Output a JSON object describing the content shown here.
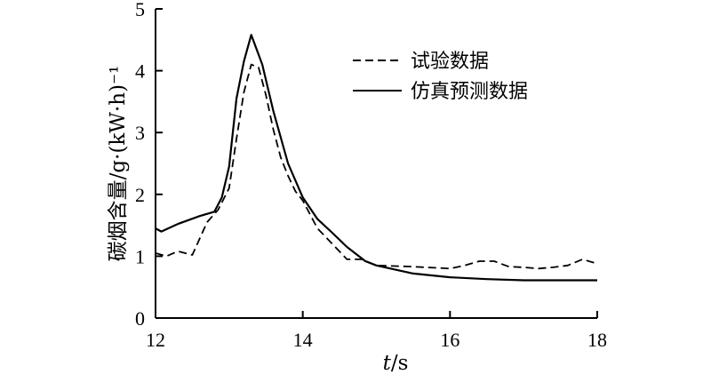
{
  "chart_data": {
    "type": "line",
    "xlabel": "t/s",
    "ylabel": "碳烟含量/g·(kW·h)⁻¹",
    "xlim": [
      12,
      18
    ],
    "ylim": [
      0,
      5
    ],
    "xticks": [
      12,
      14,
      16,
      18
    ],
    "yticks": [
      0,
      1,
      2,
      3,
      4,
      5
    ],
    "grid": false,
    "legend_position": "top-right",
    "series": [
      {
        "name": "试验数据",
        "style": "dashed",
        "x": [
          12.0,
          12.15,
          12.3,
          12.5,
          12.7,
          12.85,
          13.0,
          13.1,
          13.2,
          13.3,
          13.4,
          13.5,
          13.6,
          13.7,
          13.8,
          13.9,
          14.0,
          14.2,
          14.4,
          14.6,
          14.8,
          15.0,
          15.5,
          16.0,
          16.2,
          16.4,
          16.6,
          16.8,
          17.0,
          17.2,
          17.4,
          17.6,
          17.8,
          18.0
        ],
        "values": [
          1.05,
          1.0,
          1.08,
          1.02,
          1.55,
          1.75,
          2.1,
          2.9,
          3.65,
          4.1,
          4.05,
          3.6,
          3.05,
          2.6,
          2.3,
          2.05,
          1.9,
          1.45,
          1.2,
          0.95,
          0.95,
          0.85,
          0.83,
          0.8,
          0.85,
          0.92,
          0.92,
          0.83,
          0.82,
          0.8,
          0.82,
          0.85,
          0.95,
          0.88
        ]
      },
      {
        "name": "仿真预测数据",
        "style": "solid",
        "x": [
          12.0,
          12.08,
          12.3,
          12.6,
          12.8,
          12.9,
          13.0,
          13.1,
          13.2,
          13.3,
          13.45,
          13.6,
          13.8,
          14.0,
          14.2,
          14.4,
          14.6,
          14.85,
          15.0,
          15.5,
          16.0,
          16.5,
          17.0,
          17.5,
          18.0
        ],
        "values": [
          1.45,
          1.4,
          1.52,
          1.65,
          1.72,
          1.95,
          2.45,
          3.55,
          4.15,
          4.58,
          4.1,
          3.35,
          2.5,
          1.95,
          1.6,
          1.38,
          1.15,
          0.92,
          0.85,
          0.72,
          0.66,
          0.63,
          0.61,
          0.61,
          0.61
        ]
      }
    ]
  }
}
